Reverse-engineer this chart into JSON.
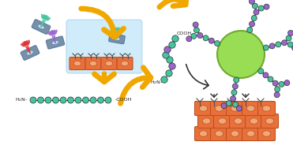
{
  "bg_color": "#ffffff",
  "arrow_color": "#F0A800",
  "arrow_edge": "#C88000",
  "teal": "#45C4A0",
  "purple": "#9966CC",
  "red_bristle": "#DD3333",
  "green_np": "#99DD55",
  "orange_cell": "#E8703A",
  "orange_cell_inner": "#F0A878",
  "gray_body": "#7890A8",
  "light_blue_bg": "#C8E8F8",
  "border_gray": "#5878A0",
  "border_orange": "#C05020",
  "dark_line": "#303030",
  "receptor_color": "#505050",
  "np_border": "#70AA30"
}
